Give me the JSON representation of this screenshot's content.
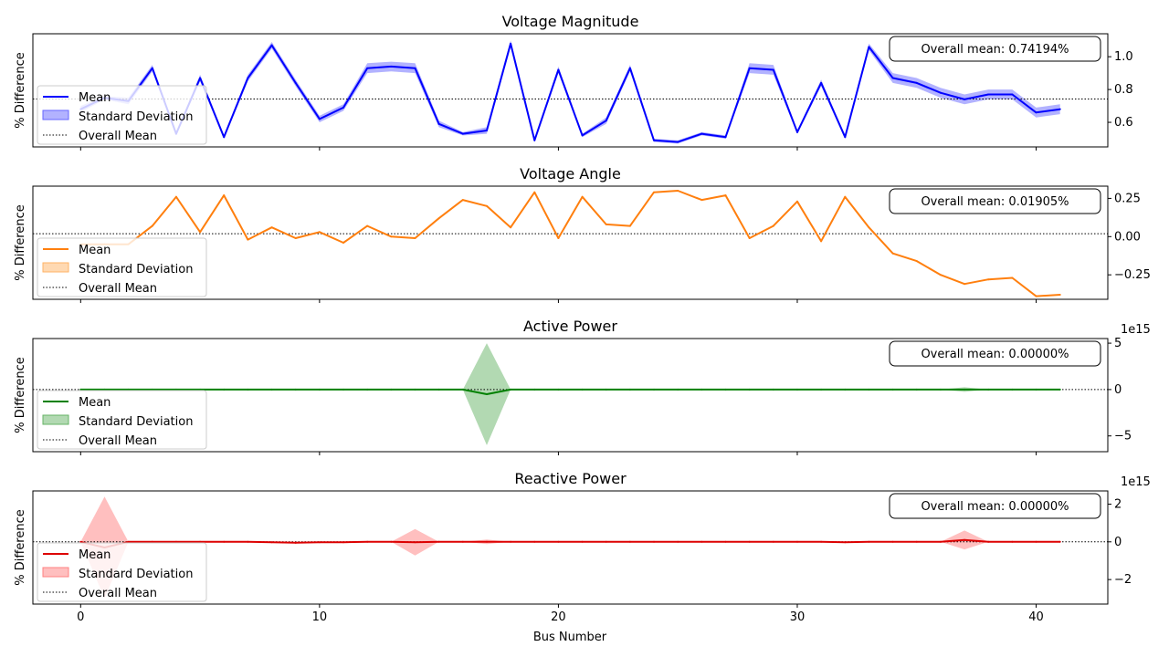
{
  "figure": {
    "xlabel": "Bus Number",
    "x_ticks": [
      0,
      10,
      20,
      30,
      40
    ],
    "xlim": [
      -2,
      43
    ]
  },
  "chart_data": [
    {
      "type": "line",
      "title": "Voltage Magnitude",
      "ylabel": "% Difference",
      "ylim": [
        0.45,
        1.14
      ],
      "y_ticks": [
        0.6,
        0.8,
        1.0
      ],
      "y_tick_labels": [
        "0.6",
        "0.8",
        "1.0"
      ],
      "multiplier": "",
      "overall_mean": 0.74194,
      "annotation": "Overall mean: 0.74194%",
      "color": "#0000ff",
      "fill_color": "#6666ff",
      "legend": [
        "Mean",
        "Standard Deviation",
        "Overall Mean"
      ],
      "x": [
        0,
        1,
        2,
        3,
        4,
        5,
        6,
        7,
        8,
        9,
        10,
        11,
        12,
        13,
        14,
        15,
        16,
        17,
        18,
        19,
        20,
        21,
        22,
        23,
        24,
        25,
        26,
        27,
        28,
        29,
        30,
        31,
        32,
        33,
        34,
        35,
        36,
        37,
        38,
        39,
        40,
        41
      ],
      "mean": [
        0.68,
        0.75,
        0.73,
        0.93,
        0.53,
        0.87,
        0.51,
        0.87,
        1.07,
        0.84,
        0.62,
        0.69,
        0.93,
        0.94,
        0.93,
        0.59,
        0.53,
        0.55,
        1.08,
        0.49,
        0.92,
        0.52,
        0.61,
        0.93,
        0.49,
        0.48,
        0.53,
        0.51,
        0.93,
        0.92,
        0.54,
        0.84,
        0.51,
        1.06,
        0.87,
        0.84,
        0.78,
        0.74,
        0.77,
        0.77,
        0.66,
        0.68
      ],
      "std": [
        0.02,
        0.01,
        0.02,
        0.02,
        0.01,
        0.02,
        0.01,
        0.02,
        0.02,
        0.02,
        0.02,
        0.02,
        0.03,
        0.03,
        0.03,
        0.02,
        0.01,
        0.02,
        0.02,
        0.01,
        0.02,
        0.01,
        0.02,
        0.02,
        0.01,
        0.01,
        0.01,
        0.01,
        0.03,
        0.03,
        0.01,
        0.02,
        0.01,
        0.02,
        0.03,
        0.03,
        0.03,
        0.03,
        0.03,
        0.03,
        0.03,
        0.03
      ]
    },
    {
      "type": "line",
      "title": "Voltage Angle",
      "ylabel": "% Difference",
      "ylim": [
        -0.41,
        0.33
      ],
      "y_ticks": [
        -0.25,
        0.0,
        0.25
      ],
      "y_tick_labels": [
        "−0.25",
        "0.00",
        "0.25"
      ],
      "multiplier": "",
      "overall_mean": 0.01905,
      "annotation": "Overall mean: 0.01905%",
      "color": "#ff7f0e",
      "fill_color": "#ffb366",
      "legend": [
        "Mean",
        "Standard Deviation",
        "Overall Mean"
      ],
      "x": [
        0,
        1,
        2,
        3,
        4,
        5,
        6,
        7,
        8,
        9,
        10,
        11,
        12,
        13,
        14,
        15,
        16,
        17,
        18,
        19,
        20,
        21,
        22,
        23,
        24,
        25,
        26,
        27,
        28,
        29,
        30,
        31,
        32,
        33,
        34,
        35,
        36,
        37,
        38,
        39,
        40,
        41
      ],
      "mean": [
        -0.05,
        -0.05,
        -0.05,
        0.07,
        0.26,
        0.03,
        0.27,
        -0.02,
        0.06,
        -0.01,
        0.03,
        -0.04,
        0.07,
        0.0,
        -0.01,
        0.12,
        0.24,
        0.2,
        0.06,
        0.29,
        -0.01,
        0.26,
        0.08,
        0.07,
        0.29,
        0.3,
        0.24,
        0.27,
        -0.01,
        0.07,
        0.23,
        -0.03,
        0.26,
        0.06,
        -0.11,
        -0.16,
        -0.25,
        -0.31,
        -0.28,
        -0.27,
        -0.39,
        -0.38
      ],
      "std": [
        0.002,
        0.002,
        0.002,
        0.002,
        0.002,
        0.002,
        0.002,
        0.002,
        0.002,
        0.002,
        0.002,
        0.002,
        0.002,
        0.002,
        0.002,
        0.002,
        0.002,
        0.002,
        0.002,
        0.002,
        0.002,
        0.002,
        0.002,
        0.002,
        0.002,
        0.002,
        0.002,
        0.002,
        0.002,
        0.002,
        0.002,
        0.002,
        0.002,
        0.002,
        0.002,
        0.002,
        0.002,
        0.002,
        0.002,
        0.002,
        0.002,
        0.002
      ]
    },
    {
      "type": "line",
      "title": "Active Power",
      "ylabel": "% Difference",
      "ylim": [
        -6.7,
        5.5
      ],
      "y_ticks": [
        -5,
        0,
        5
      ],
      "y_tick_labels": [
        "−5",
        "0",
        "5"
      ],
      "multiplier": "1e15",
      "overall_mean": 0.0,
      "annotation": "Overall mean: 0.00000%",
      "color": "#008000",
      "fill_color": "#66b366",
      "legend": [
        "Mean",
        "Standard Deviation",
        "Overall Mean"
      ],
      "x": [
        0,
        1,
        2,
        3,
        4,
        5,
        6,
        7,
        8,
        9,
        10,
        11,
        12,
        13,
        14,
        15,
        16,
        17,
        18,
        19,
        20,
        21,
        22,
        23,
        24,
        25,
        26,
        27,
        28,
        29,
        30,
        31,
        32,
        33,
        34,
        35,
        36,
        37,
        38,
        39,
        40,
        41
      ],
      "mean": [
        0,
        0,
        0,
        0,
        0,
        0,
        0,
        0,
        0,
        0,
        0,
        0,
        0,
        0,
        0,
        0,
        0,
        -0.5,
        0,
        0,
        0,
        0,
        0,
        0,
        0,
        0,
        0,
        0,
        0,
        0,
        0,
        0,
        0,
        0,
        0,
        0,
        0,
        0,
        0,
        0,
        0,
        0
      ],
      "std": [
        0,
        0,
        0,
        0,
        0,
        0,
        0,
        0,
        0,
        0,
        0,
        0,
        0,
        0,
        0,
        0,
        0,
        5.5,
        0,
        0,
        0,
        0,
        0,
        0,
        0,
        0,
        0,
        0,
        0,
        0,
        0,
        0,
        0,
        0,
        0,
        0,
        0,
        0.25,
        0,
        0,
        0,
        0
      ]
    },
    {
      "type": "line",
      "title": "Reactive Power",
      "ylabel": "% Difference",
      "ylim": [
        -3.3,
        2.7
      ],
      "y_ticks": [
        -2,
        0,
        2
      ],
      "y_tick_labels": [
        "−2",
        "0",
        "2"
      ],
      "multiplier": "1e15",
      "overall_mean": 0.0,
      "annotation": "Overall mean: 0.00000%",
      "color": "#dd0000",
      "fill_color": "#ff8080",
      "legend": [
        "Mean",
        "Standard Deviation",
        "Overall Mean"
      ],
      "x": [
        0,
        1,
        2,
        3,
        4,
        5,
        6,
        7,
        8,
        9,
        10,
        11,
        12,
        13,
        14,
        15,
        16,
        17,
        18,
        19,
        20,
        21,
        22,
        23,
        24,
        25,
        26,
        27,
        28,
        29,
        30,
        31,
        32,
        33,
        34,
        35,
        36,
        37,
        38,
        39,
        40,
        41
      ],
      "mean": [
        0,
        -0.3,
        0,
        0,
        0,
        0,
        0,
        0,
        -0.02,
        -0.05,
        -0.02,
        -0.02,
        0,
        0,
        -0.02,
        0,
        0,
        0,
        0,
        0,
        0,
        0,
        0,
        0,
        0,
        0,
        0,
        0,
        0,
        0,
        0,
        0,
        -0.02,
        0,
        0,
        0,
        0,
        0.1,
        0,
        0,
        0,
        0
      ],
      "std": [
        0,
        2.7,
        0,
        0,
        0,
        0,
        0,
        0,
        0,
        0,
        0,
        0,
        0,
        0,
        0.7,
        0,
        0,
        0.12,
        0,
        0,
        0,
        0,
        0,
        0,
        0,
        0,
        0,
        0,
        0,
        0,
        0,
        0,
        0,
        0,
        0,
        0,
        0,
        0.5,
        0,
        0,
        0,
        0
      ]
    }
  ]
}
